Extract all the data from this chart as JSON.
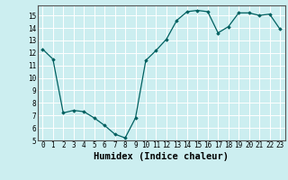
{
  "x": [
    0,
    1,
    2,
    3,
    4,
    5,
    6,
    7,
    8,
    9,
    10,
    11,
    12,
    13,
    14,
    15,
    16,
    17,
    18,
    19,
    20,
    21,
    22,
    23
  ],
  "y": [
    12.3,
    11.5,
    7.2,
    7.4,
    7.3,
    6.8,
    6.2,
    5.5,
    5.2,
    6.8,
    11.4,
    12.2,
    13.1,
    14.6,
    15.3,
    15.4,
    15.3,
    13.6,
    14.1,
    15.2,
    15.2,
    15.0,
    15.1,
    13.9
  ],
  "xlabel": "Humidex (Indice chaleur)",
  "xlim": [
    -0.5,
    23.5
  ],
  "ylim": [
    5,
    15.8
  ],
  "yticks": [
    5,
    6,
    7,
    8,
    9,
    10,
    11,
    12,
    13,
    14,
    15
  ],
  "xticks": [
    0,
    1,
    2,
    3,
    4,
    5,
    6,
    7,
    8,
    9,
    10,
    11,
    12,
    13,
    14,
    15,
    16,
    17,
    18,
    19,
    20,
    21,
    22,
    23
  ],
  "line_color": "#006060",
  "marker": "D",
  "marker_size": 1.8,
  "bg_color": "#cceef0",
  "grid_color": "#ffffff",
  "tick_fontsize": 5.5,
  "xlabel_fontsize": 7.5,
  "linewidth": 0.9
}
